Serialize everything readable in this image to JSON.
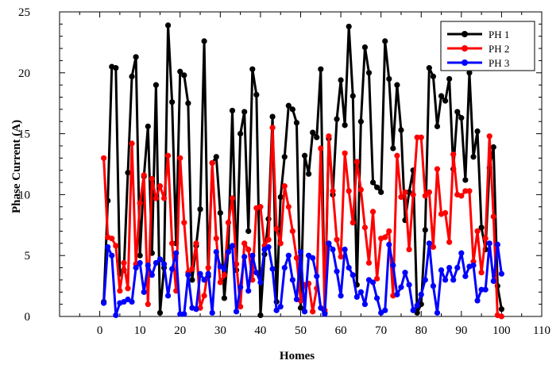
{
  "chart_data": {
    "type": "line",
    "title": "",
    "xlabel": "Homes",
    "ylabel": "Phase Current (A)",
    "xlim": [
      -10,
      110
    ],
    "ylim": [
      0,
      25
    ],
    "grid": false,
    "legend_position": "top-right",
    "x_ticks": [
      0,
      10,
      20,
      30,
      40,
      50,
      60,
      70,
      80,
      90,
      100,
      110
    ],
    "y_ticks": [
      0,
      5,
      10,
      15,
      20,
      25
    ],
    "x": [
      1,
      2,
      3,
      4,
      5,
      6,
      7,
      8,
      9,
      10,
      11,
      12,
      13,
      14,
      15,
      16,
      17,
      18,
      19,
      20,
      21,
      22,
      23,
      24,
      25,
      26,
      27,
      28,
      29,
      30,
      31,
      32,
      33,
      34,
      35,
      36,
      37,
      38,
      39,
      40,
      41,
      42,
      43,
      44,
      45,
      46,
      47,
      48,
      49,
      50,
      51,
      52,
      53,
      54,
      55,
      56,
      57,
      58,
      59,
      60,
      61,
      62,
      63,
      64,
      65,
      66,
      67,
      68,
      69,
      70,
      71,
      72,
      73,
      74,
      75,
      76,
      77,
      78,
      79,
      80,
      81,
      82,
      83,
      84,
      85,
      86,
      87,
      88,
      89,
      90,
      91,
      92,
      93,
      94,
      95,
      96,
      97,
      98,
      99,
      100
    ],
    "series": [
      {
        "name": "PH 1",
        "color": "#000000",
        "values": [
          1.2,
          9.5,
          20.5,
          20.4,
          3.5,
          3.8,
          11.8,
          19.7,
          21.3,
          5.0,
          11.5,
          15.6,
          5.2,
          19.0,
          0.3,
          4.0,
          23.9,
          17.6,
          6.0,
          20.1,
          19.8,
          17.5,
          3.0,
          5.8,
          8.8,
          22.6,
          3.3,
          12.6,
          13.1,
          8.5,
          1.5,
          5.5,
          16.9,
          3.8,
          15.0,
          16.8,
          7.0,
          20.3,
          18.2,
          0.1,
          5.1,
          8.0,
          16.4,
          1.2,
          9.8,
          13.1,
          17.3,
          17.0,
          15.9,
          0.7,
          13.2,
          11.7,
          15.1,
          14.7,
          20.3,
          0.3,
          14.6,
          10.0,
          16.2,
          19.4,
          15.7,
          23.8,
          18.1,
          2.6,
          16.0,
          22.1,
          20.0,
          11.0,
          10.6,
          10.2,
          22.6,
          19.5,
          13.8,
          19.0,
          15.3,
          7.9,
          10.2,
          12.0,
          0.3,
          1.0,
          7.1,
          20.4,
          19.7,
          15.6,
          18.1,
          17.7,
          19.5,
          12.1,
          16.8,
          16.3,
          11.2,
          20.0,
          13.1,
          15.2,
          7.3,
          5.5,
          12.2,
          13.9,
          2.5,
          0.6
        ]
      },
      {
        "name": "PH 2",
        "color": "#ff0000",
        "values": [
          13.0,
          6.5,
          6.4,
          5.8,
          2.1,
          4.4,
          2.3,
          14.2,
          4.3,
          9.3,
          11.6,
          1.0,
          11.3,
          9.7,
          10.7,
          9.7,
          13.2,
          6.0,
          2.1,
          13.0,
          7.7,
          3.6,
          3.9,
          6.0,
          0.7,
          1.7,
          4.0,
          12.6,
          6.4,
          2.8,
          3.4,
          7.7,
          9.7,
          4.3,
          0.8,
          6.0,
          5.5,
          3.0,
          8.9,
          9.0,
          5.8,
          6.3,
          15.5,
          7.2,
          6.0,
          10.7,
          9.0,
          7.0,
          4.8,
          1.3,
          2.6,
          2.7,
          0.4,
          2.3,
          13.8,
          0.5,
          14.8,
          10.3,
          6.3,
          4.9,
          13.4,
          10.3,
          7.7,
          12.7,
          10.4,
          7.3,
          4.4,
          8.6,
          3.1,
          6.4,
          6.5,
          7.0,
          1.7,
          13.2,
          9.8,
          10.2,
          5.5,
          10.0,
          14.7,
          14.7,
          9.9,
          10.2,
          5.7,
          12.1,
          8.4,
          8.5,
          6.1,
          13.3,
          10.0,
          9.9,
          10.3,
          10.3,
          4.5,
          7.0,
          3.6,
          6.4,
          14.8,
          8.2,
          0.1,
          0.0
        ]
      },
      {
        "name": "PH 3",
        "color": "#0000ff",
        "values": [
          1.1,
          5.7,
          5.0,
          0.1,
          1.1,
          1.2,
          1.4,
          1.2,
          4.0,
          4.4,
          2.0,
          4.2,
          3.4,
          4.4,
          4.7,
          4.3,
          1.7,
          3.9,
          5.2,
          0.2,
          0.2,
          3.4,
          0.7,
          0.6,
          3.5,
          3.0,
          3.5,
          0.3,
          5.3,
          4.1,
          3.9,
          5.3,
          5.8,
          0.4,
          2.4,
          4.9,
          2.1,
          5.0,
          3.6,
          2.8,
          5.5,
          5.7,
          3.9,
          0.5,
          0.8,
          4.0,
          5.0,
          3.0,
          1.4,
          5.3,
          0.4,
          5.0,
          4.8,
          3.3,
          0.7,
          0.2,
          6.0,
          5.5,
          3.7,
          1.7,
          5.5,
          4.0,
          3.4,
          1.6,
          2.0,
          1.0,
          3.0,
          2.8,
          1.5,
          0.3,
          0.5,
          5.9,
          4.2,
          1.8,
          2.4,
          3.6,
          2.6,
          0.5,
          0.9,
          1.8,
          3.0,
          6.0,
          2.5,
          0.3,
          3.8,
          3.0,
          4.0,
          3.0,
          4.0,
          5.2,
          3.3,
          4.1,
          4.2,
          1.3,
          2.2,
          2.2,
          6.0,
          2.9,
          5.9,
          3.5
        ]
      }
    ]
  }
}
